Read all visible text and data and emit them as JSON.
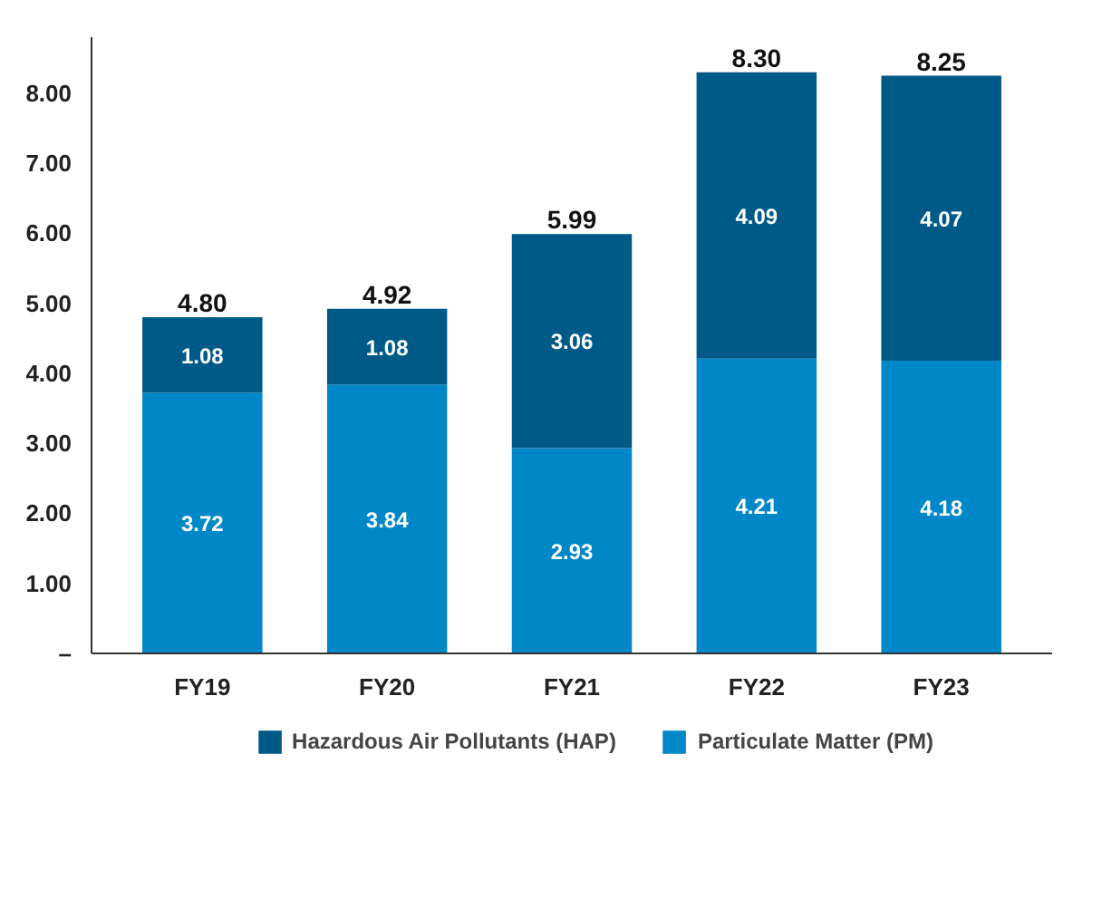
{
  "chart_data": {
    "type": "bar",
    "stacked": true,
    "categories": [
      "FY19",
      "FY20",
      "FY21",
      "FY22",
      "FY23"
    ],
    "series": [
      {
        "name": "Particulate Matter (PM)",
        "color": "#0087c8",
        "values": [
          3.72,
          3.84,
          2.93,
          4.21,
          4.18
        ]
      },
      {
        "name": "Hazardous Air Pollutants (HAP)",
        "color": "#005a87",
        "values": [
          1.08,
          1.08,
          3.06,
          4.09,
          4.07
        ]
      }
    ],
    "totals": [
      "4.80",
      "4.92",
      "5.99",
      "8.30",
      "8.25"
    ],
    "data_labels": true,
    "ylim": [
      0,
      8.8
    ],
    "yticks": [
      {
        "value": 0,
        "label": "–"
      },
      {
        "value": 1,
        "label": "1.00"
      },
      {
        "value": 2,
        "label": "2.00"
      },
      {
        "value": 3,
        "label": "3.00"
      },
      {
        "value": 4,
        "label": "4.00"
      },
      {
        "value": 5,
        "label": "5.00"
      },
      {
        "value": 6,
        "label": "6.00"
      },
      {
        "value": 7,
        "label": "7.00"
      },
      {
        "value": 8,
        "label": "8.00"
      }
    ],
    "grid": false,
    "legend": "bottom"
  }
}
